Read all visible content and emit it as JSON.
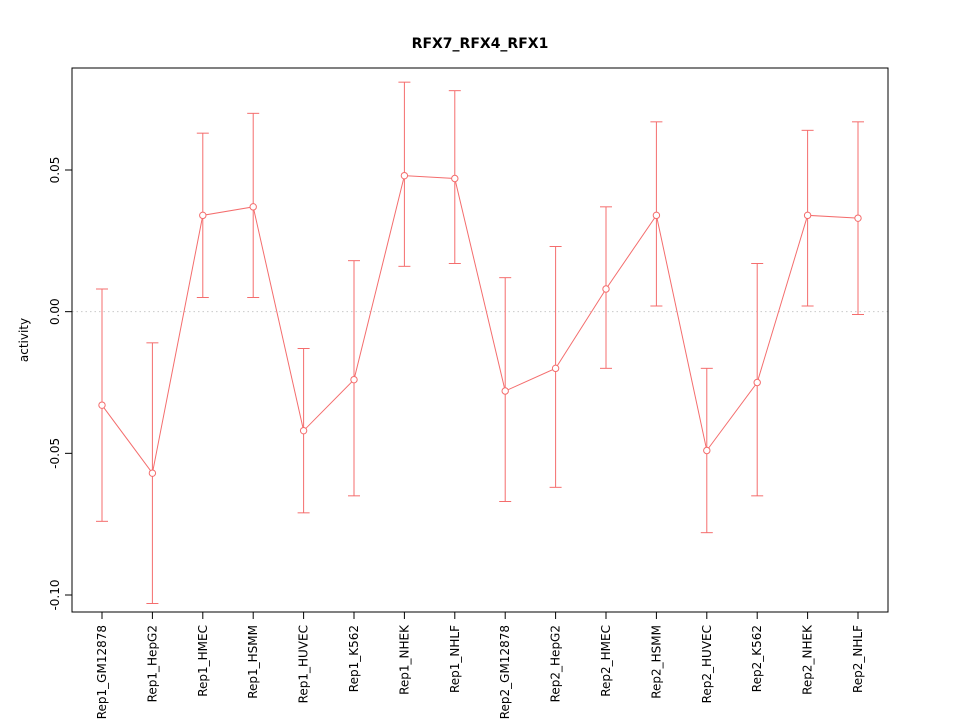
{
  "chart_data": {
    "type": "line",
    "title": "RFX7_RFX4_RFX1",
    "xlabel": "",
    "ylabel": "activity",
    "categories": [
      "Rep1_GM12878",
      "Rep1_HepG2",
      "Rep1_HMEC",
      "Rep1_HSMM",
      "Rep1_HUVEC",
      "Rep1_K562",
      "Rep1_NHEK",
      "Rep1_NHLF",
      "Rep2_GM12878",
      "Rep2_HepG2",
      "Rep2_HMEC",
      "Rep2_HSMM",
      "Rep2_HUVEC",
      "Rep2_K562",
      "Rep2_NHEK",
      "Rep2_NHLF"
    ],
    "series": [
      {
        "name": "activity",
        "values": [
          -0.033,
          -0.057,
          0.034,
          0.037,
          -0.042,
          -0.024,
          0.048,
          0.047,
          -0.028,
          -0.02,
          0.008,
          0.034,
          -0.049,
          -0.025,
          0.034,
          0.033
        ],
        "lower": [
          -0.074,
          -0.103,
          0.005,
          0.005,
          -0.071,
          -0.065,
          0.016,
          0.017,
          -0.067,
          -0.062,
          -0.02,
          0.002,
          -0.078,
          -0.065,
          0.002,
          -0.001
        ],
        "upper": [
          0.008,
          -0.011,
          0.063,
          0.07,
          -0.013,
          0.018,
          0.081,
          0.078,
          0.012,
          0.023,
          0.037,
          0.067,
          -0.02,
          0.017,
          0.064,
          0.067
        ]
      }
    ],
    "ylim": [
      -0.106,
      0.086
    ],
    "ytick_values": [
      -0.1,
      -0.05,
      0.0,
      0.05
    ],
    "ytick_labels": [
      "-0.10",
      "-0.05",
      "0.00",
      "0.05"
    ],
    "error_bars": true,
    "point_style": "open-circle",
    "legend": "none",
    "grid": "dotted horizontal line at y=0 only",
    "x_label_rotation": 90,
    "colors": {
      "series": "#f46d6d",
      "zero_line": "#c9c9c9",
      "axis": "#000000",
      "background": "#ffffff"
    }
  }
}
